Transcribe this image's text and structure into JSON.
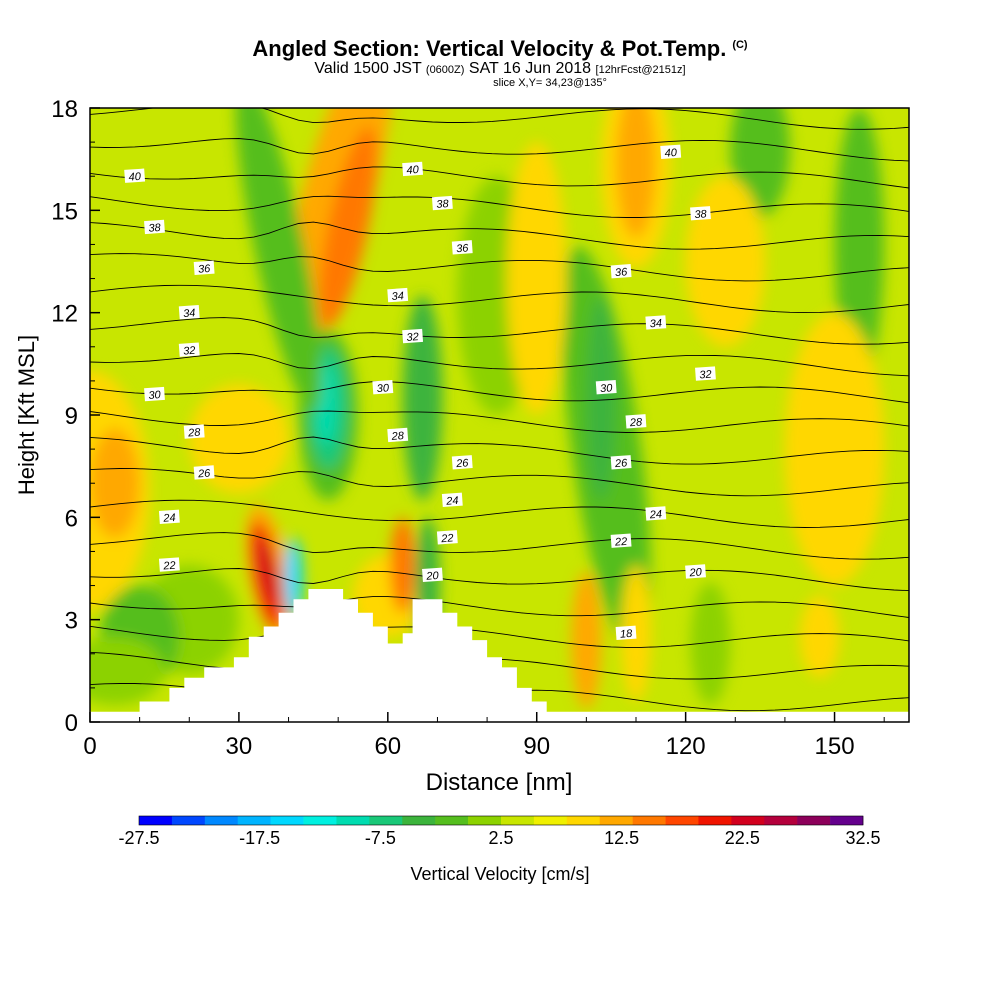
{
  "header": {
    "title": "Angled Section: Vertical Velocity & Pot.Temp.",
    "title_tag": "(C)",
    "valid_prefix": "Valid 1500 JST",
    "valid_z": "(0600Z)",
    "valid_date": "SAT 16 Jun 2018",
    "valid_fcst": "[12hrFcst@2151z]",
    "slice": "slice X,Y= 34,23@135°"
  },
  "chart_data": {
    "type": "heatmap",
    "xlabel": "Distance [nm]",
    "ylabel": "Height [Kft MSL]",
    "xlim": [
      0,
      165
    ],
    "ylim": [
      0,
      18
    ],
    "x_ticks": [
      "0",
      "30",
      "60",
      "90",
      "120",
      "150"
    ],
    "y_ticks": [
      "0",
      "3",
      "6",
      "9",
      "12",
      "15",
      "18"
    ],
    "colorbar": {
      "label": "Vertical Velocity [cm/s]",
      "tick_labels": [
        "-27.5",
        "-17.5",
        "-7.5",
        "2.5",
        "12.5",
        "22.5",
        "32.5"
      ],
      "colors": [
        "#0000ff",
        "#0047ff",
        "#0088ff",
        "#00b4ff",
        "#00d8ff",
        "#00f0e0",
        "#00dcb0",
        "#19c878",
        "#3cb43c",
        "#55be1e",
        "#8cd200",
        "#c8e600",
        "#f0f000",
        "#ffd700",
        "#ffa800",
        "#ff7800",
        "#ff4600",
        "#f01400",
        "#d2001e",
        "#b4003c",
        "#8c005a",
        "#64008c"
      ]
    },
    "theta_contours": [
      {
        "label": "18",
        "x": 108,
        "y": 2.6
      },
      {
        "label": "20",
        "x": 69,
        "y": 4.3
      },
      {
        "label": "20",
        "x": 122,
        "y": 4.4
      },
      {
        "label": "22",
        "x": 16,
        "y": 4.6
      },
      {
        "label": "22",
        "x": 72,
        "y": 5.4
      },
      {
        "label": "22",
        "x": 107,
        "y": 5.3
      },
      {
        "label": "24",
        "x": 16,
        "y": 6.0
      },
      {
        "label": "24",
        "x": 73,
        "y": 6.5
      },
      {
        "label": "24",
        "x": 114,
        "y": 6.1
      },
      {
        "label": "26",
        "x": 23,
        "y": 7.3
      },
      {
        "label": "26",
        "x": 75,
        "y": 7.6
      },
      {
        "label": "26",
        "x": 107,
        "y": 7.6
      },
      {
        "label": "28",
        "x": 21,
        "y": 8.5
      },
      {
        "label": "28",
        "x": 62,
        "y": 8.4
      },
      {
        "label": "28",
        "x": 110,
        "y": 8.8
      },
      {
        "label": "30",
        "x": 13,
        "y": 9.6
      },
      {
        "label": "30",
        "x": 59,
        "y": 9.8
      },
      {
        "label": "30",
        "x": 104,
        "y": 9.8
      },
      {
        "label": "32",
        "x": 20,
        "y": 10.9
      },
      {
        "label": "32",
        "x": 65,
        "y": 11.3
      },
      {
        "label": "32",
        "x": 124,
        "y": 10.2
      },
      {
        "label": "34",
        "x": 20,
        "y": 12.0
      },
      {
        "label": "34",
        "x": 62,
        "y": 12.5
      },
      {
        "label": "34",
        "x": 114,
        "y": 11.7
      },
      {
        "label": "36",
        "x": 23,
        "y": 13.3
      },
      {
        "label": "36",
        "x": 75,
        "y": 13.9
      },
      {
        "label": "36",
        "x": 107,
        "y": 13.2
      },
      {
        "label": "38",
        "x": 13,
        "y": 14.5
      },
      {
        "label": "38",
        "x": 71,
        "y": 15.2
      },
      {
        "label": "38",
        "x": 123,
        "y": 14.9
      },
      {
        "label": "40",
        "x": 9,
        "y": 16.0
      },
      {
        "label": "40",
        "x": 65,
        "y": 16.2
      },
      {
        "label": "40",
        "x": 117,
        "y": 16.7
      }
    ],
    "terrain": [
      [
        0,
        0.3
      ],
      [
        10,
        0.3
      ],
      [
        10,
        0.6
      ],
      [
        16,
        0.6
      ],
      [
        16,
        1.0
      ],
      [
        19,
        1.0
      ],
      [
        19,
        1.3
      ],
      [
        23,
        1.3
      ],
      [
        23,
        1.6
      ],
      [
        29,
        1.6
      ],
      [
        29,
        1.9
      ],
      [
        32,
        1.9
      ],
      [
        32,
        2.5
      ],
      [
        35,
        2.5
      ],
      [
        35,
        2.8
      ],
      [
        38,
        2.8
      ],
      [
        38,
        3.2
      ],
      [
        41,
        3.2
      ],
      [
        41,
        3.6
      ],
      [
        44,
        3.6
      ],
      [
        44,
        3.9
      ],
      [
        51,
        3.9
      ],
      [
        51,
        3.6
      ],
      [
        54,
        3.6
      ],
      [
        54,
        3.2
      ],
      [
        57,
        3.2
      ],
      [
        57,
        2.8
      ],
      [
        60,
        2.8
      ],
      [
        60,
        2.3
      ],
      [
        63,
        2.3
      ],
      [
        63,
        2.6
      ],
      [
        65,
        2.6
      ],
      [
        65,
        3.6
      ],
      [
        71,
        3.6
      ],
      [
        71,
        3.2
      ],
      [
        74,
        3.2
      ],
      [
        74,
        2.8
      ],
      [
        77,
        2.8
      ],
      [
        77,
        2.4
      ],
      [
        80,
        2.4
      ],
      [
        80,
        1.9
      ],
      [
        83,
        1.9
      ],
      [
        83,
        1.6
      ],
      [
        86,
        1.6
      ],
      [
        86,
        1.0
      ],
      [
        89,
        1.0
      ],
      [
        89,
        0.6
      ],
      [
        92,
        0.6
      ],
      [
        92,
        0.3
      ],
      [
        165,
        0.3
      ],
      [
        165,
        0
      ],
      [
        0,
        0
      ]
    ]
  }
}
